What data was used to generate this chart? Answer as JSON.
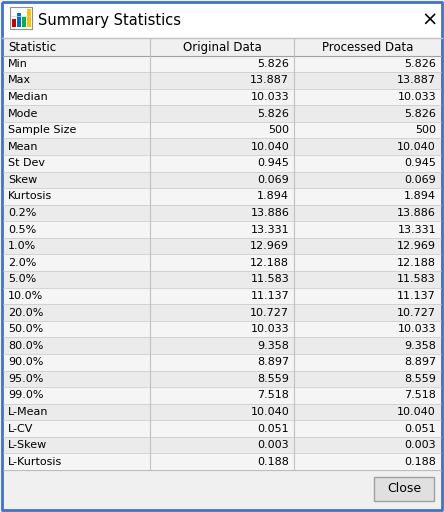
{
  "title": "Summary Statistics",
  "headers": [
    "Statistic",
    "Original Data",
    "Processed Data"
  ],
  "rows": [
    [
      "Min",
      "5.826",
      "5.826"
    ],
    [
      "Max",
      "13.887",
      "13.887"
    ],
    [
      "Median",
      "10.033",
      "10.033"
    ],
    [
      "Mode",
      "5.826",
      "5.826"
    ],
    [
      "Sample Size",
      "500",
      "500"
    ],
    [
      "Mean",
      "10.040",
      "10.040"
    ],
    [
      "St Dev",
      "0.945",
      "0.945"
    ],
    [
      "Skew",
      "0.069",
      "0.069"
    ],
    [
      "Kurtosis",
      "1.894",
      "1.894"
    ],
    [
      "0.2%",
      "13.886",
      "13.886"
    ],
    [
      "0.5%",
      "13.331",
      "13.331"
    ],
    [
      "1.0%",
      "12.969",
      "12.969"
    ],
    [
      "2.0%",
      "12.188",
      "12.188"
    ],
    [
      "5.0%",
      "11.583",
      "11.583"
    ],
    [
      "10.0%",
      "11.137",
      "11.137"
    ],
    [
      "20.0%",
      "10.727",
      "10.727"
    ],
    [
      "50.0%",
      "10.033",
      "10.033"
    ],
    [
      "80.0%",
      "9.358",
      "9.358"
    ],
    [
      "90.0%",
      "8.897",
      "8.897"
    ],
    [
      "95.0%",
      "8.559",
      "8.559"
    ],
    [
      "99.0%",
      "7.518",
      "7.518"
    ],
    [
      "L-Mean",
      "10.040",
      "10.040"
    ],
    [
      "L-CV",
      "0.051",
      "0.051"
    ],
    [
      "L-Skew",
      "0.003",
      "0.003"
    ],
    [
      "L-Kurtosis",
      "0.188",
      "0.188"
    ]
  ],
  "window_bg": "#f0f0f0",
  "title_bar_bg": "#ffffff",
  "border_color": "#4472c4",
  "border_lw": 2.0,
  "table_border_color": "#c0c0c0",
  "row_bg_light": "#f5f5f5",
  "row_bg_dark": "#ebebeb",
  "header_bg": "#f0f0f0",
  "close_btn_bg": "#e0e0e0",
  "close_btn_border": "#a0a0a0",
  "title_font_size": 10.5,
  "header_font_size": 8.5,
  "row_font_size": 8.0,
  "col_split1": 0.335,
  "col_split2": 0.665
}
